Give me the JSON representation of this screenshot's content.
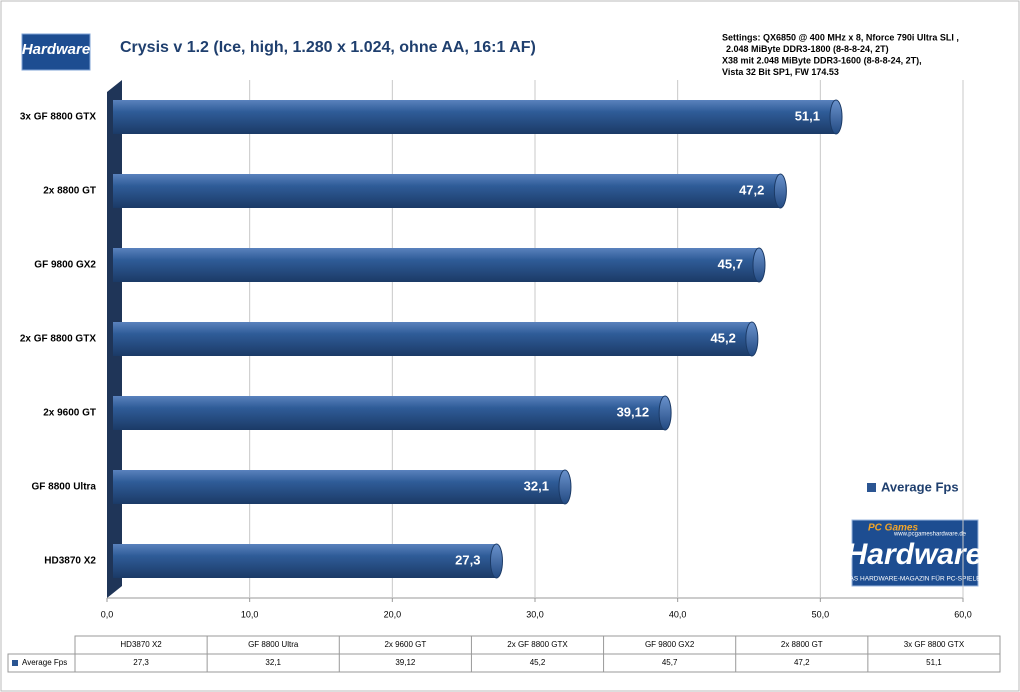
{
  "chart_data": {
    "type": "bar",
    "orientation": "horizontal",
    "title": "Crysis v 1.2 (Ice, high, 1.280 x 1.024, ohne AA, 16:1 AF)",
    "annotation": [
      "Settings: QX6850 @ 400 MHz x 8, Nforce 790i Ultra SLI ,",
      "2.048 MiByte DDR3-1800 (8-8-8-24, 2T)",
      "X38 mit 2.048 MiByte DDR3-1600 (8-8-8-24, 2T),",
      "Vista 32 Bit SP1, FW 174.53"
    ],
    "logo": {
      "name": "Hardware",
      "brand": "PC Games",
      "url": "www.pcgameshardware.de",
      "tagline": "DAS HARDWARE-MAGAZIN FÜR PC-SPIELER"
    },
    "categories": [
      "HD3870 X2",
      "GF 8800 Ultra",
      "2x 9600 GT",
      "2x GF 8800 GTX",
      "GF 9800 GX2",
      "2x 8800 GT",
      "3x GF 8800 GTX"
    ],
    "series": [
      {
        "name": "Average Fps",
        "color": "#2b5592",
        "values": [
          27.3,
          32.1,
          39.12,
          45.2,
          45.7,
          47.2,
          51.1
        ],
        "value_labels": [
          "27,3",
          "32,1",
          "39,12",
          "45,2",
          "45,7",
          "47,2",
          "51,1"
        ]
      }
    ],
    "xlim": [
      0,
      60
    ],
    "xticks": [
      {
        "value": 0,
        "label": "0,0"
      },
      {
        "value": 10,
        "label": "10,0"
      },
      {
        "value": 20,
        "label": "20,0"
      },
      {
        "value": 30,
        "label": "30,0"
      },
      {
        "value": 40,
        "label": "40,0"
      },
      {
        "value": 50,
        "label": "50,0"
      },
      {
        "value": 60,
        "label": "60,0"
      }
    ],
    "grid": true,
    "legend": "right",
    "data_table": true
  }
}
